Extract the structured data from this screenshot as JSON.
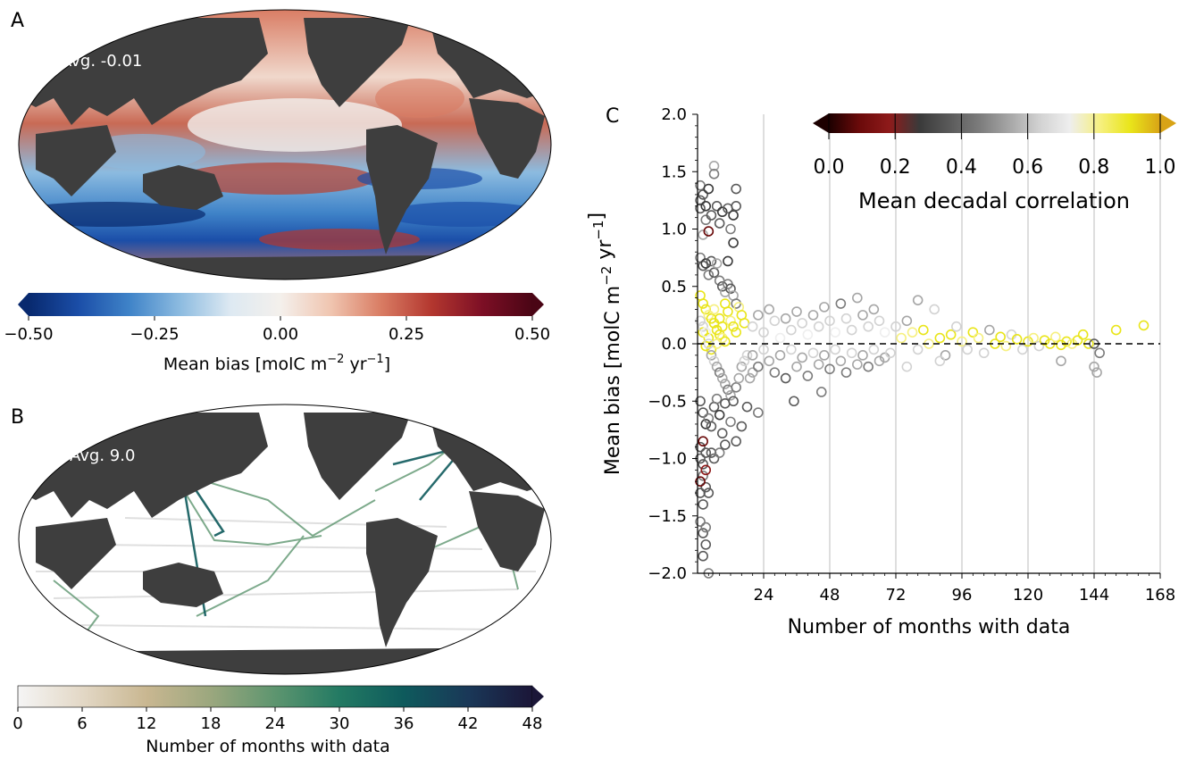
{
  "colors": {
    "land": "#3e3e3e",
    "bias_cmap": [
      "#08296e",
      "#1b4ea8",
      "#3f83c8",
      "#8cbbe0",
      "#dde9f2",
      "#f4f0ec",
      "#f0c5b0",
      "#d97c63",
      "#b3372f",
      "#7d0f25",
      "#4a0515"
    ],
    "months_cmap": [
      "#f5f5f5",
      "#e3d8c6",
      "#c9b791",
      "#9ba77e",
      "#5d956f",
      "#237a63",
      "#0e5a5c",
      "#1a3858",
      "#1b1638"
    ],
    "corr_cmap": [
      "#1c0000",
      "#6a0a0a",
      "#8e1a1a",
      "#3a3a3a",
      "#5a5a5a",
      "#7c7c7c",
      "#a6a6a6",
      "#d2d2d2",
      "#eeeeee",
      "#f6f080",
      "#e9e51a",
      "#d8a316"
    ],
    "zero_line": "#000000",
    "grid": "#c8c8c8"
  },
  "panels": {
    "a": {
      "letter": "A",
      "avg_label": "Avg. -0.01",
      "colorbar": {
        "ticks": [
          "−0.50",
          "−0.25",
          "0.00",
          "0.25",
          "0.50"
        ],
        "label_main": "Mean bias [molC m",
        "label_sup1": "−2",
        "label_mid": " yr",
        "label_sup2": "−1",
        "label_end": "]"
      }
    },
    "b": {
      "letter": "B",
      "avg_label": "Avg. 9.0",
      "colorbar": {
        "ticks": [
          "0",
          "6",
          "12",
          "18",
          "24",
          "30",
          "36",
          "42",
          "48"
        ],
        "label": "Number of months with data"
      }
    },
    "c": {
      "letter": "C"
    }
  },
  "chart_data": [
    {
      "type": "heatmap",
      "panel": "A",
      "description_value": "global map of mean bias",
      "annotation": "Avg. -0.01",
      "colorbar_range": [
        -0.5,
        0.5
      ],
      "colorbar_ticks": [
        -0.5,
        -0.25,
        0.0,
        0.25,
        0.5
      ],
      "colorbar_label": "Mean bias [molC m−2 yr−1]"
    },
    {
      "type": "heatmap",
      "panel": "B",
      "annotation": "Avg. 9.0",
      "colorbar_range": [
        0,
        48
      ],
      "colorbar_ticks": [
        0,
        6,
        12,
        18,
        24,
        30,
        36,
        42,
        48
      ],
      "colorbar_label": "Number of months with data"
    },
    {
      "type": "scatter",
      "panel": "C",
      "xlabel": "Number of months with data",
      "ylabel": "Mean bias [molC m−2 yr−1]",
      "xlim": [
        0,
        168
      ],
      "ylim": [
        -2.0,
        2.0
      ],
      "xticks": [
        24,
        48,
        72,
        96,
        120,
        144,
        168
      ],
      "yticks": [
        -2.0,
        -1.5,
        -1.0,
        -0.5,
        0.0,
        0.5,
        1.0,
        1.5,
        2.0
      ],
      "ytick_labels": [
        "−2.0",
        "−1.5",
        "−1.0",
        "−0.5",
        "0.0",
        "0.5",
        "1.0",
        "1.5",
        "2.0"
      ],
      "grid": "vertical",
      "reference_line": 0.0,
      "colorbar_label": "Mean decadal correlation",
      "colorbar_range": [
        0.0,
        1.0
      ],
      "colorbar_ticks": [
        "0.0",
        "0.2",
        "0.4",
        "0.6",
        "0.8",
        "1.0"
      ],
      "colorbar_position": "top-right",
      "points": [
        [
          1,
          1.38,
          0.45
        ],
        [
          1,
          1.25,
          0.4
        ],
        [
          1,
          1.18,
          0.35
        ],
        [
          2,
          1.3,
          0.4
        ],
        [
          2,
          0.95,
          0.5
        ],
        [
          3,
          1.2,
          0.3
        ],
        [
          3,
          1.08,
          0.45
        ],
        [
          4,
          1.35,
          0.3
        ],
        [
          4,
          0.98,
          0.1
        ],
        [
          5,
          1.12,
          0.4
        ],
        [
          6,
          1.55,
          0.5
        ],
        [
          6,
          1.48,
          0.45
        ],
        [
          7,
          1.2,
          0.35
        ],
        [
          8,
          1.05,
          0.4
        ],
        [
          9,
          1.15,
          0.3
        ],
        [
          11,
          1.18,
          0.35
        ],
        [
          12,
          1.0,
          0.45
        ],
        [
          13,
          1.12,
          0.3
        ],
        [
          14,
          1.35,
          0.4
        ],
        [
          14,
          1.2,
          0.35
        ],
        [
          13,
          0.88,
          0.3
        ],
        [
          11,
          0.72,
          0.3
        ],
        [
          1,
          0.75,
          0.45
        ],
        [
          2,
          0.68,
          0.4
        ],
        [
          3,
          0.7,
          0.3
        ],
        [
          4,
          0.6,
          0.45
        ],
        [
          5,
          0.72,
          0.4
        ],
        [
          6,
          0.62,
          0.35
        ],
        [
          7,
          0.7,
          0.5
        ],
        [
          8,
          0.55,
          0.45
        ],
        [
          9,
          0.5,
          0.4
        ],
        [
          10,
          0.45,
          0.5
        ],
        [
          11,
          0.52,
          0.45
        ],
        [
          12,
          0.48,
          0.4
        ],
        [
          13,
          0.42,
          0.5
        ],
        [
          14,
          0.35,
          0.45
        ],
        [
          1,
          0.42,
          0.9
        ],
        [
          2,
          0.35,
          0.88
        ],
        [
          3,
          0.3,
          0.92
        ],
        [
          4,
          0.25,
          0.85
        ],
        [
          5,
          0.22,
          0.9
        ],
        [
          6,
          0.18,
          0.95
        ],
        [
          7,
          0.12,
          0.88
        ],
        [
          8,
          0.08,
          0.9
        ],
        [
          9,
          0.05,
          0.86
        ],
        [
          10,
          0.02,
          0.92
        ],
        [
          11,
          0.28,
          0.9
        ],
        [
          12,
          0.2,
          0.85
        ],
        [
          13,
          0.15,
          0.88
        ],
        [
          14,
          0.1,
          0.9
        ],
        [
          15,
          0.32,
          0.86
        ],
        [
          16,
          0.25,
          0.9
        ],
        [
          17,
          0.18,
          0.88
        ],
        [
          3,
          -0.02,
          0.9
        ],
        [
          5,
          -0.05,
          0.92
        ],
        [
          7,
          0.0,
          0.85
        ],
        [
          9,
          0.15,
          0.9
        ],
        [
          2,
          0.1,
          0.88
        ],
        [
          4,
          0.05,
          0.9
        ],
        [
          6,
          0.3,
          0.85
        ],
        [
          8,
          0.22,
          0.92
        ],
        [
          10,
          0.35,
          0.88
        ],
        [
          1,
          0.2,
          0.6
        ],
        [
          2,
          0.15,
          0.65
        ],
        [
          3,
          0.1,
          0.7
        ],
        [
          4,
          0.0,
          0.6
        ],
        [
          5,
          -0.1,
          0.55
        ],
        [
          6,
          -0.15,
          0.6
        ],
        [
          7,
          -0.2,
          0.5
        ],
        [
          8,
          -0.25,
          0.45
        ],
        [
          9,
          -0.3,
          0.55
        ],
        [
          10,
          -0.35,
          0.5
        ],
        [
          11,
          -0.4,
          0.45
        ],
        [
          12,
          -0.45,
          0.5
        ],
        [
          13,
          -0.5,
          0.4
        ],
        [
          14,
          -0.38,
          0.45
        ],
        [
          15,
          -0.3,
          0.5
        ],
        [
          16,
          -0.2,
          0.55
        ],
        [
          17,
          -0.15,
          0.6
        ],
        [
          18,
          -0.1,
          0.65
        ],
        [
          19,
          -0.3,
          0.5
        ],
        [
          20,
          -0.25,
          0.55
        ],
        [
          22,
          -0.6,
          0.45
        ],
        [
          1,
          -0.5,
          0.35
        ],
        [
          2,
          -0.6,
          0.4
        ],
        [
          3,
          -0.7,
          0.3
        ],
        [
          4,
          -0.65,
          0.45
        ],
        [
          5,
          -0.72,
          0.35
        ],
        [
          6,
          -0.55,
          0.4
        ],
        [
          7,
          -0.48,
          0.45
        ],
        [
          8,
          -0.62,
          0.3
        ],
        [
          9,
          -0.78,
          0.4
        ],
        [
          10,
          -0.52,
          0.35
        ],
        [
          12,
          -0.68,
          0.45
        ],
        [
          14,
          -0.85,
          0.4
        ],
        [
          16,
          -0.72,
          0.35
        ],
        [
          18,
          -0.55,
          0.4
        ],
        [
          1,
          -0.9,
          0.4
        ],
        [
          1,
          -1.0,
          0.35
        ],
        [
          2,
          -1.05,
          0.4
        ],
        [
          2,
          -1.15,
          0.45
        ],
        [
          3,
          -0.95,
          0.35
        ],
        [
          3,
          -1.25,
          0.4
        ],
        [
          1,
          -1.3,
          0.35
        ],
        [
          2,
          -1.4,
          0.4
        ],
        [
          1,
          -1.55,
          0.45
        ],
        [
          2,
          -1.65,
          0.4
        ],
        [
          3,
          -1.75,
          0.35
        ],
        [
          2,
          -1.85,
          0.4
        ],
        [
          3,
          -1.6,
          0.45
        ],
        [
          4,
          -1.3,
          0.4
        ],
        [
          1,
          -1.2,
          0.1
        ],
        [
          2,
          -0.85,
          0.1
        ],
        [
          3,
          -1.1,
          0.15
        ],
        [
          5,
          -0.95,
          0.4
        ],
        [
          6,
          -1.0,
          0.35
        ],
        [
          8,
          -0.95,
          0.45
        ],
        [
          10,
          -0.88,
          0.4
        ],
        [
          4,
          -2.0,
          0.45
        ],
        [
          20,
          0.15,
          0.6
        ],
        [
          22,
          0.25,
          0.55
        ],
        [
          24,
          0.1,
          0.65
        ],
        [
          26,
          0.3,
          0.5
        ],
        [
          28,
          0.2,
          0.6
        ],
        [
          30,
          0.05,
          0.7
        ],
        [
          32,
          0.22,
          0.55
        ],
        [
          34,
          0.12,
          0.65
        ],
        [
          36,
          0.28,
          0.5
        ],
        [
          38,
          0.18,
          0.6
        ],
        [
          40,
          0.08,
          0.7
        ],
        [
          42,
          0.25,
          0.55
        ],
        [
          44,
          0.15,
          0.65
        ],
        [
          46,
          0.32,
          0.5
        ],
        [
          48,
          0.2,
          0.6
        ],
        [
          50,
          0.1,
          0.7
        ],
        [
          52,
          0.35,
          0.45
        ],
        [
          54,
          0.22,
          0.6
        ],
        [
          56,
          0.12,
          0.65
        ],
        [
          58,
          0.4,
          0.5
        ],
        [
          60,
          0.25,
          0.55
        ],
        [
          62,
          0.15,
          0.65
        ],
        [
          64,
          0.3,
          0.5
        ],
        [
          66,
          0.2,
          0.6
        ],
        [
          68,
          0.1,
          0.7
        ],
        [
          20,
          -0.1,
          0.5
        ],
        [
          22,
          -0.2,
          0.45
        ],
        [
          24,
          -0.05,
          0.6
        ],
        [
          26,
          -0.15,
          0.5
        ],
        [
          28,
          -0.25,
          0.45
        ],
        [
          30,
          -0.1,
          0.55
        ],
        [
          32,
          -0.3,
          0.4
        ],
        [
          34,
          -0.05,
          0.6
        ],
        [
          36,
          -0.2,
          0.5
        ],
        [
          38,
          -0.12,
          0.55
        ],
        [
          40,
          -0.28,
          0.45
        ],
        [
          42,
          -0.08,
          0.6
        ],
        [
          44,
          -0.18,
          0.5
        ],
        [
          46,
          -0.1,
          0.55
        ],
        [
          48,
          -0.22,
          0.45
        ],
        [
          50,
          -0.05,
          0.6
        ],
        [
          52,
          -0.15,
          0.5
        ],
        [
          54,
          -0.25,
          0.45
        ],
        [
          56,
          -0.08,
          0.6
        ],
        [
          58,
          -0.18,
          0.5
        ],
        [
          60,
          -0.1,
          0.55
        ],
        [
          62,
          -0.2,
          0.45
        ],
        [
          64,
          -0.05,
          0.6
        ],
        [
          66,
          -0.15,
          0.5
        ],
        [
          68,
          -0.12,
          0.55
        ],
        [
          70,
          -0.08,
          0.6
        ],
        [
          35,
          -0.5,
          0.4
        ],
        [
          45,
          -0.42,
          0.45
        ],
        [
          72,
          0.15,
          0.6
        ],
        [
          74,
          0.05,
          0.8
        ],
        [
          76,
          0.2,
          0.55
        ],
        [
          78,
          0.1,
          0.85
        ],
        [
          80,
          -0.05,
          0.6
        ],
        [
          82,
          0.12,
          0.88
        ],
        [
          84,
          0.0,
          0.85
        ],
        [
          86,
          0.3,
          0.6
        ],
        [
          88,
          0.05,
          0.9
        ],
        [
          90,
          -0.1,
          0.55
        ],
        [
          92,
          0.08,
          0.88
        ],
        [
          94,
          0.15,
          0.6
        ],
        [
          96,
          0.02,
          0.85
        ],
        [
          98,
          -0.05,
          0.6
        ],
        [
          100,
          0.1,
          0.9
        ],
        [
          102,
          0.05,
          0.85
        ],
        [
          104,
          -0.08,
          0.6
        ],
        [
          106,
          0.12,
          0.55
        ],
        [
          108,
          0.0,
          0.88
        ],
        [
          110,
          0.06,
          0.9
        ],
        [
          112,
          -0.02,
          0.85
        ],
        [
          114,
          0.08,
          0.6
        ],
        [
          116,
          0.04,
          0.88
        ],
        [
          118,
          -0.05,
          0.6
        ],
        [
          120,
          0.02,
          0.9
        ],
        [
          122,
          0.05,
          0.85
        ],
        [
          124,
          -0.02,
          0.6
        ],
        [
          126,
          0.03,
          0.88
        ],
        [
          128,
          0.0,
          0.9
        ],
        [
          130,
          0.06,
          0.85
        ],
        [
          132,
          -0.01,
          0.88
        ],
        [
          134,
          0.02,
          0.9
        ],
        [
          136,
          0.0,
          0.85
        ],
        [
          138,
          0.03,
          0.88
        ],
        [
          140,
          0.08,
          0.9
        ],
        [
          142,
          0.0,
          0.88
        ],
        [
          144,
          0.0,
          0.4
        ],
        [
          152,
          0.12,
          0.9
        ],
        [
          162,
          0.16,
          0.9
        ],
        [
          132,
          -0.15,
          0.55
        ],
        [
          144,
          -0.2,
          0.55
        ],
        [
          145,
          -0.25,
          0.5
        ],
        [
          146,
          -0.08,
          0.45
        ],
        [
          80,
          0.38,
          0.55
        ],
        [
          76,
          -0.2,
          0.6
        ],
        [
          88,
          -0.15,
          0.6
        ]
      ]
    }
  ]
}
